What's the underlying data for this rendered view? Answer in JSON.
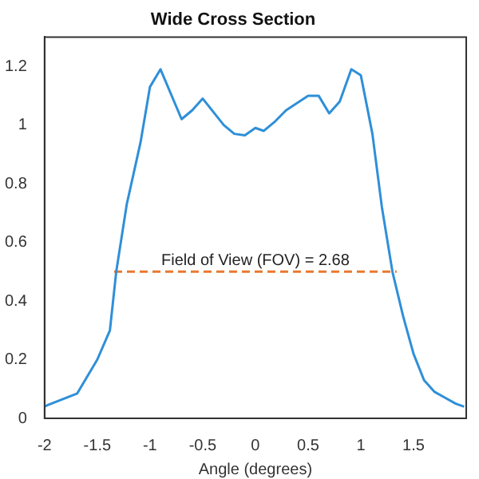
{
  "chart_data": {
    "type": "line",
    "title": "Wide Cross Section",
    "xlabel": "Angle (degrees)",
    "x": [
      -2,
      -1.97,
      -1.69,
      -1.5,
      -1.38,
      -1.32,
      -1.22,
      -1.09,
      -1.0,
      -0.9,
      -0.7,
      -0.6,
      -0.5,
      -0.3,
      -0.2,
      -0.1,
      0.0,
      0.08,
      0.18,
      0.29,
      0.5,
      0.6,
      0.7,
      0.8,
      0.91,
      1.0,
      1.11,
      1.2,
      1.3,
      1.4,
      1.5,
      1.6,
      1.7,
      1.8,
      1.9,
      1.98
    ],
    "series": [
      {
        "color": "#2f8fd8",
        "values": [
          0.04,
          0.045,
          0.085,
          0.2,
          0.3,
          0.5,
          0.73,
          0.94,
          1.13,
          1.19,
          1.02,
          1.05,
          1.09,
          1.0,
          0.97,
          0.965,
          0.99,
          0.98,
          1.01,
          1.05,
          1.1,
          1.1,
          1.04,
          1.08,
          1.19,
          1.17,
          0.97,
          0.72,
          0.5,
          0.35,
          0.22,
          0.13,
          0.09,
          0.07,
          0.05,
          0.04
        ]
      },
      {
        "type": "line",
        "x": [
          -1.34,
          1.34
        ],
        "values": [
          0.5,
          0.5
        ],
        "color": "#e8792f",
        "line_style": "dashed"
      }
    ],
    "annotations": [
      {
        "text": "Field of View (FOV) = 2.68",
        "x": 0,
        "y": 0.5
      }
    ],
    "xlim": [
      -2,
      2
    ],
    "xticks": [
      -2,
      -1.5,
      -1,
      -0.5,
      0,
      0.5,
      1,
      1.5
    ],
    "ylim": [
      0,
      1.3
    ],
    "yticks": [
      0,
      0.2,
      0.4,
      0.6,
      0.8,
      1,
      1.2
    ],
    "grid": false,
    "legend": false,
    "marker": "none",
    "line_style": "solid"
  }
}
